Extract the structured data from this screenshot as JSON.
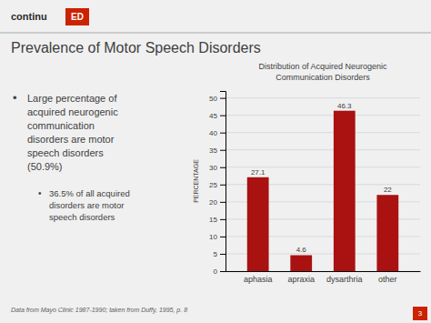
{
  "chart_data": {
    "type": "bar",
    "title": "Distribution of Acquired Neurogenic\nCommunication Disorders",
    "categories": [
      "aphasia",
      "apraxia",
      "dysarthria",
      "other"
    ],
    "values": [
      27.1,
      4.6,
      46.3,
      22
    ],
    "color": "#aa1111",
    "ylabel": "PERCENTAGE",
    "ylim": [
      0,
      52
    ],
    "yticks": [
      0,
      5,
      10,
      15,
      20,
      25,
      30,
      35,
      40,
      45,
      50
    ],
    "grid": true,
    "data_labels": true,
    "annotations": [
      "continu",
      "ED",
      "Prevalence of Motor Speech Disorders",
      "•",
      "Large percentage of\nacquired neurogenic\ncommunication\ndisorders are motor\nspeech disorders\n(50.9%)",
      "•",
      "36.5% of all acquired\ndisorders are motor\nspeech disorders",
      "Data from Mayo Clinic 1987-1990; taken from Duffy, 1995, p. 8",
      "3"
    ]
  }
}
